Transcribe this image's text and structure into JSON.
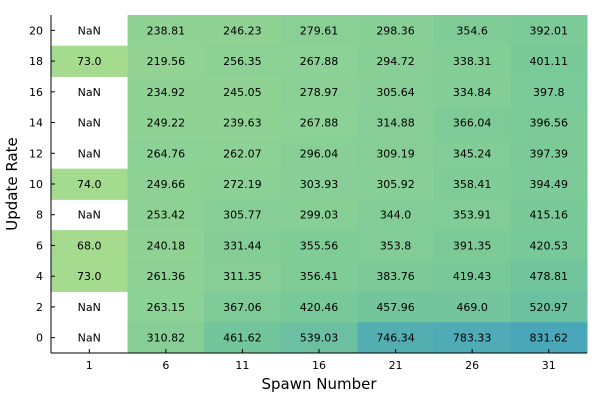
{
  "chart_data": {
    "type": "heatmap",
    "xlabel": "Spawn Number",
    "ylabel": "Update Rate",
    "x_categories": [
      "1",
      "6",
      "11",
      "16",
      "21",
      "26",
      "31"
    ],
    "y_categories": [
      "0",
      "2",
      "4",
      "6",
      "8",
      "10",
      "12",
      "14",
      "16",
      "18",
      "20"
    ],
    "nan_label": "NaN",
    "color_scale": {
      "min": 68.0,
      "max": 831.62,
      "colors": [
        "#a6db8f",
        "#74c79a",
        "#4aa7b9"
      ]
    },
    "rows": [
      {
        "y": "20",
        "values": [
          null,
          238.81,
          246.23,
          279.61,
          298.36,
          354.6,
          392.01
        ]
      },
      {
        "y": "18",
        "values": [
          73.0,
          219.56,
          256.35,
          267.88,
          294.72,
          338.31,
          401.11
        ]
      },
      {
        "y": "16",
        "values": [
          null,
          234.92,
          245.05,
          278.97,
          305.64,
          334.84,
          397.8
        ]
      },
      {
        "y": "14",
        "values": [
          null,
          249.22,
          239.63,
          267.88,
          314.88,
          366.04,
          396.56
        ]
      },
      {
        "y": "12",
        "values": [
          null,
          264.76,
          262.07,
          296.04,
          309.19,
          345.24,
          397.39
        ]
      },
      {
        "y": "10",
        "values": [
          74.0,
          249.66,
          272.19,
          303.93,
          305.92,
          358.41,
          394.49
        ]
      },
      {
        "y": "8",
        "values": [
          null,
          253.42,
          305.77,
          299.03,
          344.0,
          353.91,
          415.16
        ]
      },
      {
        "y": "6",
        "values": [
          68.0,
          240.18,
          331.44,
          355.56,
          353.8,
          391.35,
          420.53
        ]
      },
      {
        "y": "4",
        "values": [
          73.0,
          261.36,
          311.35,
          356.41,
          383.76,
          419.43,
          478.81
        ]
      },
      {
        "y": "2",
        "values": [
          null,
          263.15,
          367.06,
          420.46,
          457.96,
          469.0,
          520.97
        ]
      },
      {
        "y": "0",
        "values": [
          null,
          310.82,
          461.62,
          539.03,
          746.34,
          783.33,
          831.62
        ]
      }
    ],
    "cell_labels": [
      [
        "NaN",
        "238.81",
        "246.23",
        "279.61",
        "298.36",
        "354.6",
        "392.01"
      ],
      [
        "73.0",
        "219.56",
        "256.35",
        "267.88",
        "294.72",
        "338.31",
        "401.11"
      ],
      [
        "NaN",
        "234.92",
        "245.05",
        "278.97",
        "305.64",
        "334.84",
        "397.8"
      ],
      [
        "NaN",
        "249.22",
        "239.63",
        "267.88",
        "314.88",
        "366.04",
        "396.56"
      ],
      [
        "NaN",
        "264.76",
        "262.07",
        "296.04",
        "309.19",
        "345.24",
        "397.39"
      ],
      [
        "74.0",
        "249.66",
        "272.19",
        "303.93",
        "305.92",
        "358.41",
        "394.49"
      ],
      [
        "NaN",
        "253.42",
        "305.77",
        "299.03",
        "344.0",
        "353.91",
        "415.16"
      ],
      [
        "68.0",
        "240.18",
        "331.44",
        "355.56",
        "353.8",
        "391.35",
        "420.53"
      ],
      [
        "73.0",
        "261.36",
        "311.35",
        "356.41",
        "383.76",
        "419.43",
        "478.81"
      ],
      [
        "NaN",
        "263.15",
        "367.06",
        "420.46",
        "457.96",
        "469.0",
        "520.97"
      ],
      [
        "NaN",
        "310.82",
        "461.62",
        "539.03",
        "746.34",
        "783.33",
        "831.62"
      ]
    ],
    "legend": "none",
    "grid": false
  }
}
